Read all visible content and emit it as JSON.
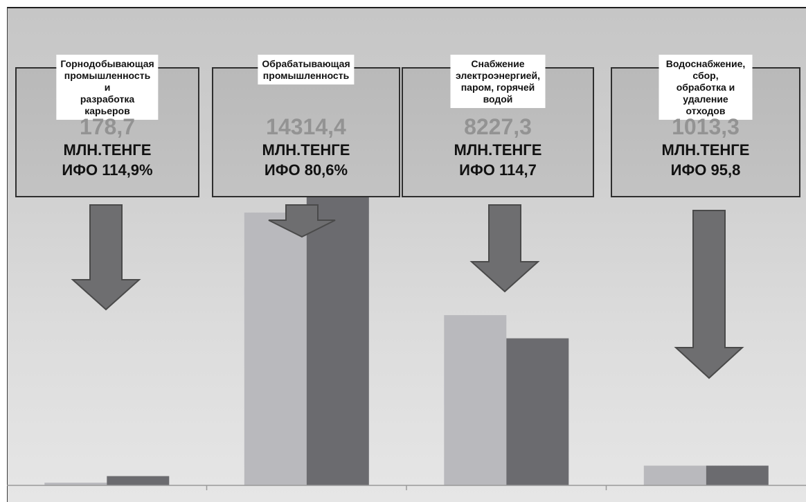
{
  "colors": {
    "bar_light": "#b9b9bd",
    "bar_dark": "#6b6b6f",
    "arrow_fill": "#6e6e70",
    "arrow_stroke": "#4a4a4a",
    "axis": "#9a9a9a"
  },
  "cards": [
    {
      "title": "Горнодобывающая\nпромышленность и\nразработка карьеров",
      "value": "178,7",
      "unit": "МЛН.ТЕНГЕ",
      "ifo": "ИФО 114,9%"
    },
    {
      "title": "Обрабатывающая\nпромышленность",
      "value": "14314,4",
      "unit": "МЛН.ТЕНГЕ",
      "ifo": "ИФО 80,6%"
    },
    {
      "title": "Снабжение\nэлектроэнергией,\nпаром, горячей водой",
      "value": "8227,3",
      "unit": "МЛН.ТЕНГЕ",
      "ifo": "ИФО 114,7"
    },
    {
      "title": "Водоснабжение, сбор,\nобработка и удаление\nотходов",
      "value": "1013,3",
      "unit": "МЛН.ТЕНГЕ",
      "ifo": "ИФО 95,8"
    }
  ],
  "chart_data": {
    "type": "bar",
    "categories": [
      "Горнодобывающая промышленность и разработка карьеров",
      "Обрабатывающая промышленность",
      "Снабжение электроэнергией, паром, горячей водой",
      "Водоснабжение, сбор, обработка и удаление отходов"
    ],
    "series": [
      {
        "values": [
          140,
          14100,
          8800,
          1020
        ]
      },
      {
        "values": [
          480,
          15700,
          7600,
          1020
        ]
      }
    ],
    "ylim": [
      0,
      17500
    ],
    "grid": false,
    "legend": "none"
  }
}
